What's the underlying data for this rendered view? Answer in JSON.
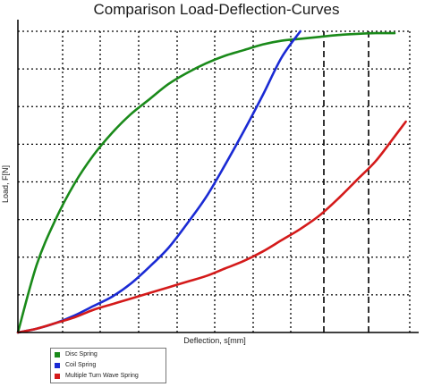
{
  "chart_data": {
    "type": "line",
    "title": "Comparison Load-Deflection-Curves",
    "xlabel": "Deflection, s[mm]",
    "ylabel": "Load, F[N]",
    "xlim": [
      0,
      10.5
    ],
    "ylim": [
      0,
      8
    ],
    "grid": true,
    "legend_position": "bottom-left",
    "series": [
      {
        "name": "Disc Spring",
        "color": "#1a8a1a",
        "x": [
          0,
          0.5,
          1.0,
          1.5,
          2.0,
          2.5,
          3.0,
          3.5,
          4.0,
          4.5,
          5.0,
          5.5,
          6.0,
          6.5,
          7.0,
          7.5,
          8.0,
          8.5,
          9.0,
          9.5,
          10.0
        ],
        "y": [
          0,
          1.8,
          3.0,
          3.95,
          4.7,
          5.3,
          5.8,
          6.2,
          6.6,
          6.9,
          7.15,
          7.35,
          7.5,
          7.65,
          7.75,
          7.8,
          7.85,
          7.9,
          7.93,
          7.95,
          7.95
        ]
      },
      {
        "name": "Coil Spring",
        "color": "#1a2ad4",
        "x": [
          0,
          0.5,
          1.0,
          1.5,
          2.0,
          2.5,
          3.0,
          3.5,
          4.0,
          4.5,
          5.0,
          5.5,
          6.0,
          6.5,
          7.0,
          7.5
        ],
        "y": [
          0,
          0.1,
          0.25,
          0.45,
          0.7,
          0.95,
          1.3,
          1.75,
          2.25,
          2.9,
          3.6,
          4.45,
          5.35,
          6.3,
          7.3,
          8.0
        ]
      },
      {
        "name": "Multiple Turn Wave Spring",
        "color": "#d41a1a",
        "x": [
          0,
          0.5,
          1.0,
          1.5,
          2.0,
          2.5,
          3.0,
          3.5,
          4.0,
          4.5,
          5.0,
          5.5,
          6.0,
          6.5,
          7.0,
          7.5,
          8.0,
          8.5,
          9.0,
          9.5,
          10.0,
          10.3
        ],
        "y": [
          0,
          0.1,
          0.25,
          0.4,
          0.6,
          0.75,
          0.9,
          1.05,
          1.2,
          1.35,
          1.5,
          1.7,
          1.9,
          2.15,
          2.45,
          2.75,
          3.1,
          3.55,
          4.05,
          4.55,
          5.2,
          5.6
        ]
      }
    ]
  }
}
